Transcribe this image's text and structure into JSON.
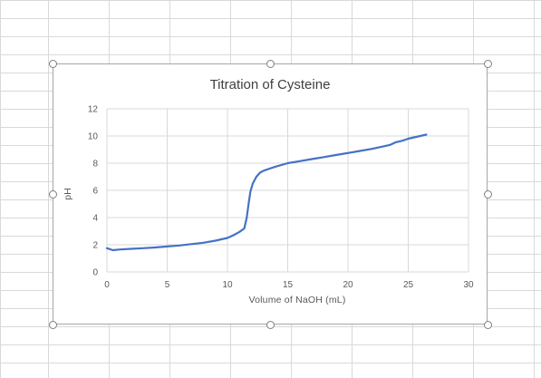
{
  "chart_data": {
    "type": "line",
    "title": "Titration of Cysteine",
    "xlabel": "Volume of NaOH (mL)",
    "ylabel": "pH",
    "xlim": [
      0,
      30
    ],
    "ylim": [
      0,
      12
    ],
    "x_ticks": [
      0,
      5,
      10,
      15,
      20,
      25,
      30
    ],
    "y_ticks": [
      0,
      2,
      4,
      6,
      8,
      10,
      12
    ],
    "grid": true,
    "legend": "none",
    "series": [
      {
        "color": "#4472c4",
        "x": [
          0,
          0.5,
          1,
          2,
          3,
          4,
          5,
          6,
          7,
          8,
          9,
          9.5,
          10,
          10.5,
          11,
          11.4,
          11.6,
          11.75,
          11.9,
          12.1,
          12.4,
          12.7,
          13,
          13.5,
          14,
          15,
          16,
          17,
          18,
          19,
          20,
          21,
          22,
          23,
          23.5,
          24,
          24.5,
          25,
          25.5,
          26,
          26.5
        ],
        "y": [
          1.75,
          1.6,
          1.65,
          1.7,
          1.75,
          1.8,
          1.87,
          1.95,
          2.05,
          2.15,
          2.3,
          2.4,
          2.5,
          2.7,
          2.95,
          3.2,
          4.0,
          5.0,
          5.9,
          6.5,
          7.0,
          7.3,
          7.45,
          7.6,
          7.75,
          8.0,
          8.15,
          8.3,
          8.45,
          8.6,
          8.75,
          8.9,
          9.05,
          9.25,
          9.35,
          9.55,
          9.65,
          9.8,
          9.9,
          10.0,
          10.1
        ]
      }
    ]
  }
}
